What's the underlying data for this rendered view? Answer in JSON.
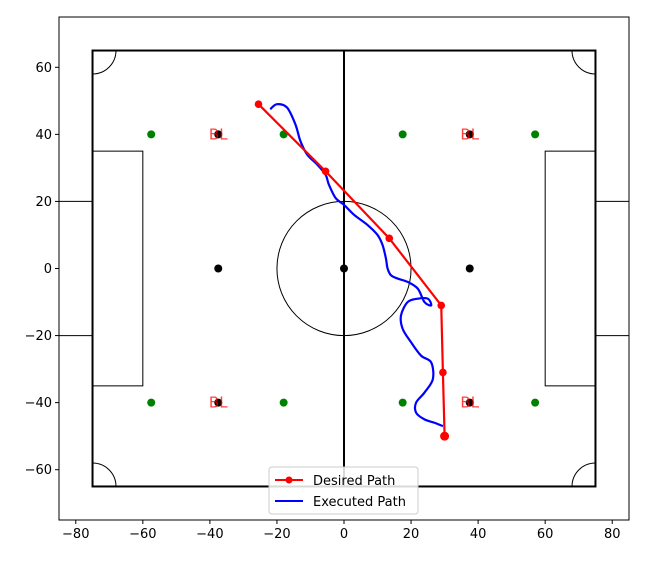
{
  "chart_data": {
    "type": "line",
    "title": "",
    "xlabel": "",
    "ylabel": "",
    "xlim": [
      -85,
      85
    ],
    "ylim": [
      -75,
      75
    ],
    "xticks": [
      -80,
      -60,
      -40,
      -20,
      0,
      20,
      40,
      60,
      80
    ],
    "yticks": [
      -60,
      -40,
      -20,
      0,
      20,
      40,
      60
    ],
    "xtick_labels": [
      "−80",
      "−60",
      "−40",
      "−20",
      "0",
      "20",
      "40",
      "60",
      "80"
    ],
    "ytick_labels": [
      "−60",
      "−40",
      "−20",
      "0",
      "20",
      "40",
      "60"
    ],
    "grid": false,
    "legend_position": "bottom-center",
    "series": [
      {
        "name": "Desired Path",
        "color": "#ff0000",
        "marker": "circle",
        "x": [
          -25.5,
          -5.5,
          13.5,
          29,
          29.5,
          30
        ],
        "y": [
          49,
          29,
          9,
          -11,
          -31,
          -50
        ]
      },
      {
        "name": "Executed Path",
        "color": "#0000ff",
        "marker": "none",
        "x": [
          -22,
          -20,
          -17,
          -14.5,
          -13,
          -11,
          -8,
          -5.5,
          -4.5,
          -2.5,
          0,
          3,
          7,
          10,
          11.5,
          12.5,
          13,
          14,
          16,
          19,
          22,
          24,
          26,
          25,
          22,
          19,
          17,
          17.5,
          20,
          23,
          26,
          26.5,
          24,
          21.5,
          21.5,
          24,
          27,
          29.5
        ],
        "y": [
          47.5,
          49,
          48,
          43,
          38,
          34,
          31,
          28,
          25,
          21,
          19,
          16,
          13,
          10,
          7,
          3,
          0,
          -2,
          -3,
          -4,
          -6,
          -10,
          -11,
          -9,
          -9,
          -10,
          -14,
          -18,
          -22,
          -26,
          -28,
          -33,
          -37,
          -40,
          -43,
          -45,
          -46,
          -47
        ]
      }
    ],
    "field": {
      "outer_x": [
        -75,
        75
      ],
      "outer_y": [
        -65,
        65
      ],
      "center_circle_radius": 20,
      "penalty_box_depth": 15,
      "penalty_box_half_width": 35,
      "goal_half_width": 20,
      "penalty_spot_x": 37.5,
      "corner_arc_radius": 7
    },
    "markers": {
      "green": [
        [
          -57.5,
          40
        ],
        [
          -18,
          40
        ],
        [
          17.5,
          40
        ],
        [
          57,
          40
        ],
        [
          -57.5,
          -40
        ],
        [
          -18,
          -40
        ],
        [
          17.5,
          -40
        ],
        [
          57,
          -40
        ]
      ],
      "black": [
        [
          -37.5,
          0
        ],
        [
          0,
          0
        ],
        [
          37.5,
          0
        ]
      ],
      "bl_labels": [
        {
          "text": "BL",
          "x": -37.5,
          "y": 40
        },
        {
          "text": "BL",
          "x": 37.5,
          "y": 40
        },
        {
          "text": "BL",
          "x": -37.5,
          "y": -40
        },
        {
          "text": "BL",
          "x": 37.5,
          "y": -40
        }
      ]
    }
  }
}
